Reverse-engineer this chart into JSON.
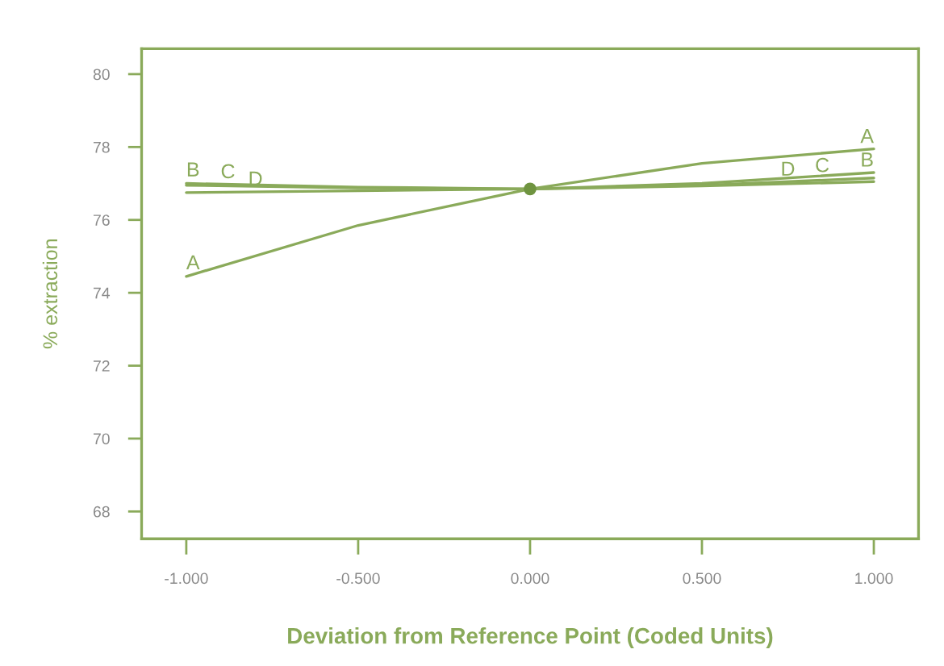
{
  "chart_data": {
    "type": "line",
    "xlabel": "Deviation from Reference Point (Coded Units)",
    "ylabel": "% extraction",
    "x": [
      -1,
      -0.5,
      0,
      0.5,
      1
    ],
    "series": [
      {
        "name": "A",
        "color": "#8aaa5a",
        "values": [
          74.45,
          75.85,
          76.85,
          77.55,
          77.95
        ]
      },
      {
        "name": "B",
        "color": "#8aaa5a",
        "values": [
          77.0,
          76.9,
          76.85,
          77.0,
          77.3
        ]
      },
      {
        "name": "C",
        "color": "#8aaa5a",
        "values": [
          76.95,
          76.88,
          76.85,
          76.95,
          77.15
        ]
      },
      {
        "name": "D",
        "color": "#8aaa5a",
        "values": [
          76.75,
          76.8,
          76.85,
          76.93,
          77.05
        ]
      },
      {
        "type": "scatter",
        "marker": "circle",
        "color": "#6f9440",
        "x": [
          0
        ],
        "values": [
          76.85
        ]
      }
    ],
    "xlim": [
      -1.13,
      1.13
    ],
    "ylim": [
      67.25,
      80.7
    ],
    "xticks": [
      {
        "value": -1,
        "label": "-1.000"
      },
      {
        "value": -0.5,
        "label": "-0.500"
      },
      {
        "value": 0,
        "label": "0.000"
      },
      {
        "value": 0.5,
        "label": "0.500"
      },
      {
        "value": 1,
        "label": "1.000"
      }
    ],
    "yticks": [
      68,
      70,
      72,
      74,
      76,
      78,
      80
    ],
    "grid": false,
    "marker": "none",
    "line_style": "solid"
  }
}
